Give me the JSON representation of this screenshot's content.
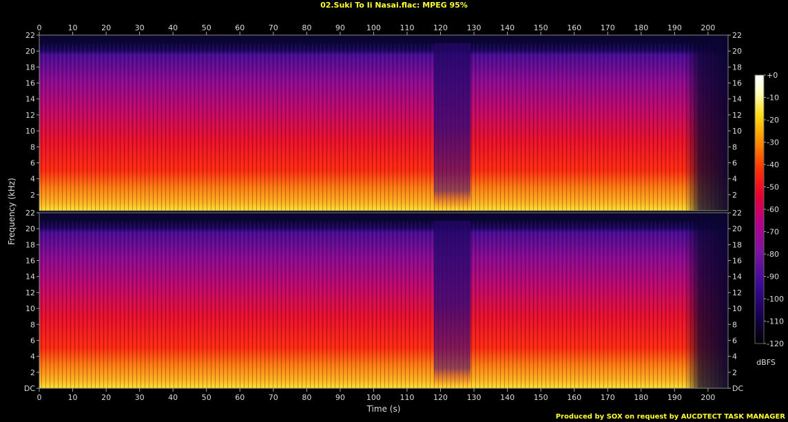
{
  "title": "02.Suki To Ii Nasai.flac: MPEG 95%",
  "footer": "Produced by SOX on request by AUCDTECT TASK MANAGER",
  "chart_data": {
    "type": "heatmap",
    "title": "02.Suki To Ii Nasai.flac: MPEG 95%",
    "xlabel": "Time (s)",
    "ylabel": "Frequency (kHz)",
    "xlim": [
      0,
      206
    ],
    "ylim": [
      0,
      22
    ],
    "x_ticks": [
      "0",
      "10",
      "20",
      "30",
      "40",
      "50",
      "60",
      "70",
      "80",
      "90",
      "100",
      "110",
      "120",
      "130",
      "140",
      "150",
      "160",
      "170",
      "180",
      "190",
      "200"
    ],
    "y_ticks": [
      "DC",
      "2",
      "4",
      "6",
      "8",
      "10",
      "12",
      "14",
      "16",
      "18",
      "20",
      "22"
    ],
    "channels": 2,
    "lowpass_cutoff_khz": 21,
    "colorbar": {
      "label": "dBFS",
      "ticks": [
        "+0",
        "-10",
        "-20",
        "-30",
        "-40",
        "-50",
        "-60",
        "-70",
        "-80",
        "-90",
        "-100",
        "-110",
        "-120"
      ],
      "range": [
        -120,
        0
      ]
    },
    "colormap": [
      "#000000",
      "#14004b",
      "#3c0a96",
      "#7a14a0",
      "#b4008c",
      "#e60032",
      "#ff3200",
      "#ff8c00",
      "#ffdc14",
      "#ffffc8",
      "#ffffff"
    ]
  }
}
